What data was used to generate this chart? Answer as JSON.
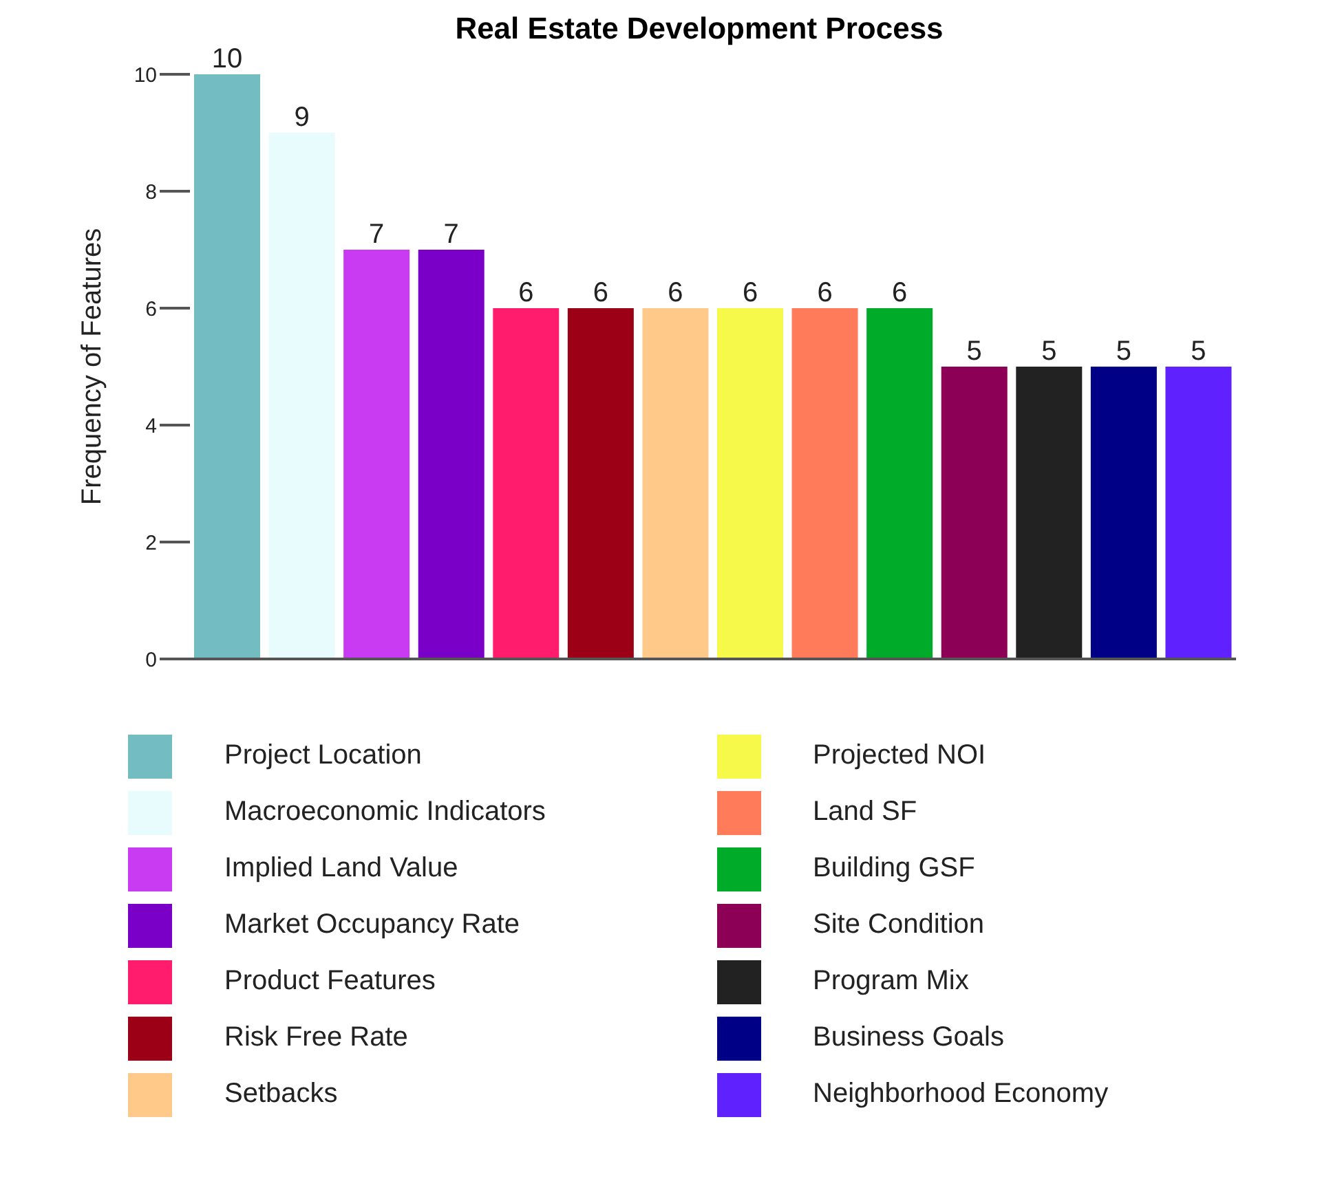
{
  "chart_data": {
    "type": "bar",
    "title": "Real Estate Development Process",
    "ylabel": "Frequency of Features",
    "categories": [
      null,
      null,
      null,
      null,
      null,
      null,
      null,
      null,
      null,
      null,
      null,
      null,
      null,
      null
    ],
    "stacked": true,
    "series": [
      {
        "name": "Project Location",
        "color": "#72bcc2",
        "values": [
          10,
          null,
          null,
          null,
          null,
          null,
          null,
          null,
          null,
          null,
          null,
          null,
          null,
          null
        ]
      },
      {
        "name": "Macroeconomic Indicators",
        "color": "#e8fbfd",
        "values": [
          null,
          9,
          null,
          null,
          null,
          null,
          null,
          null,
          null,
          null,
          null,
          null,
          null,
          null
        ]
      },
      {
        "name": "Implied Land Value",
        "color": "#c93bf2",
        "values": [
          null,
          null,
          7,
          null,
          null,
          null,
          null,
          null,
          null,
          null,
          null,
          null,
          null,
          null
        ]
      },
      {
        "name": "Market Occupancy Rate",
        "color": "#7a00c8",
        "values": [
          null,
          null,
          null,
          7,
          null,
          null,
          null,
          null,
          null,
          null,
          null,
          null,
          null,
          null
        ]
      },
      {
        "name": "Product Features",
        "color": "#ff1c6c",
        "values": [
          null,
          null,
          null,
          null,
          6,
          null,
          null,
          null,
          null,
          null,
          null,
          null,
          null,
          null
        ]
      },
      {
        "name": "Risk Free Rate",
        "color": "#9b0016",
        "values": [
          null,
          null,
          null,
          null,
          null,
          6,
          null,
          null,
          null,
          null,
          null,
          null,
          null,
          null
        ]
      },
      {
        "name": "Setbacks",
        "color": "#ffc98a",
        "values": [
          null,
          null,
          null,
          null,
          null,
          null,
          6,
          null,
          null,
          null,
          null,
          null,
          null,
          null
        ]
      },
      {
        "name": "Projected NOI",
        "color": "#f6f84a",
        "values": [
          null,
          null,
          null,
          null,
          null,
          null,
          null,
          6,
          null,
          null,
          null,
          null,
          null,
          null
        ]
      },
      {
        "name": "Land SF",
        "color": "#ff7b5a",
        "values": [
          null,
          null,
          null,
          null,
          null,
          null,
          null,
          null,
          6,
          null,
          null,
          null,
          null,
          null
        ]
      },
      {
        "name": "Building GSF",
        "color": "#00ab2a",
        "values": [
          null,
          null,
          null,
          null,
          null,
          null,
          null,
          null,
          null,
          6,
          null,
          null,
          null,
          null
        ]
      },
      {
        "name": "Site Condition",
        "color": "#8c0055",
        "values": [
          null,
          null,
          null,
          null,
          null,
          null,
          null,
          null,
          null,
          null,
          5,
          null,
          null,
          null
        ]
      },
      {
        "name": "Program Mix",
        "color": "#222222",
        "values": [
          null,
          null,
          null,
          null,
          null,
          null,
          null,
          null,
          null,
          null,
          null,
          5,
          null,
          null
        ]
      },
      {
        "name": "Business Goals",
        "color": "#000087",
        "values": [
          null,
          null,
          null,
          null,
          null,
          null,
          null,
          null,
          null,
          null,
          null,
          null,
          5,
          null
        ]
      },
      {
        "name": "Neighborhood Economy",
        "color": "#5f22ff",
        "values": [
          null,
          null,
          null,
          null,
          null,
          null,
          null,
          null,
          null,
          null,
          null,
          null,
          null,
          5
        ]
      }
    ],
    "ylim": [
      0,
      10
    ],
    "yticks": [
      0,
      2,
      4,
      6,
      8,
      10
    ],
    "grid": false,
    "data_labels": true,
    "legend": "bottom",
    "tick_labels": "y"
  }
}
